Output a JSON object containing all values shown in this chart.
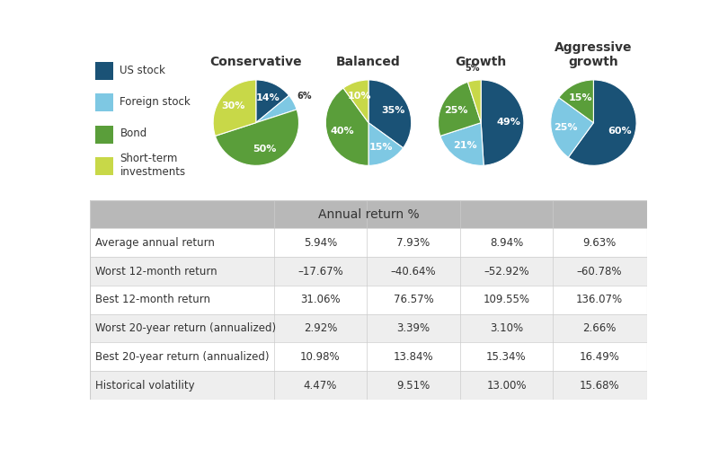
{
  "legend_items": [
    "US stock",
    "Foreign stock",
    "Bond",
    "Short-term\ninvestments"
  ],
  "colors": {
    "us_stock": "#1a5276",
    "foreign_stock": "#7ec8e3",
    "bond": "#5a9e3a",
    "short_term": "#c8d848"
  },
  "column_headers": [
    "Conservative",
    "Balanced",
    "Growth",
    "Aggressive\ngrowth"
  ],
  "pie_data": {
    "Conservative": [
      14,
      6,
      50,
      30
    ],
    "Balanced": [
      35,
      15,
      40,
      10
    ],
    "Growth": [
      49,
      21,
      25,
      5
    ],
    "Aggressive growth": [
      60,
      25,
      15,
      0
    ]
  },
  "pie_labels": {
    "Conservative": [
      "14%",
      "6%",
      "50%",
      "30%"
    ],
    "Balanced": [
      "35%",
      "15%",
      "40%",
      "10%"
    ],
    "Growth": [
      "49%",
      "21%",
      "25%",
      "5%"
    ],
    "Aggressive growth": [
      "60%",
      "25%",
      "15%",
      ""
    ]
  },
  "table_header": "Annual return %",
  "row_labels": [
    "Average annual return",
    "Worst 12-month return",
    "Best 12-month return",
    "Worst 20-year return (annualized)",
    "Best 20-year return (annualized)",
    "Historical volatility"
  ],
  "table_data": [
    [
      "5.94%",
      "7.93%",
      "8.94%",
      "9.63%"
    ],
    [
      "–17.67%",
      "–40.64%",
      "–52.92%",
      "–60.78%"
    ],
    [
      "31.06%",
      "76.57%",
      "109.55%",
      "136.07%"
    ],
    [
      "2.92%",
      "3.39%",
      "3.10%",
      "2.66%"
    ],
    [
      "10.98%",
      "13.84%",
      "15.34%",
      "16.49%"
    ],
    [
      "4.47%",
      "9.51%",
      "13.00%",
      "15.68%"
    ]
  ],
  "bg_color": "#ffffff",
  "header_bg": "#b8b8b8",
  "row_alt_bg": "#eeeeee",
  "grid_color": "#cccccc"
}
